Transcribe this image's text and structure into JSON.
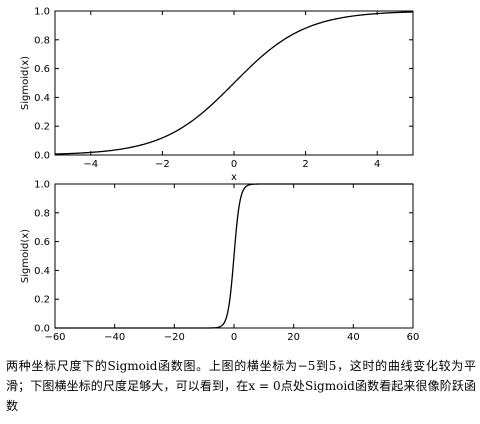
{
  "chart_data": [
    {
      "type": "line",
      "function": "sigmoid",
      "x_range": [
        -5,
        5
      ],
      "xlim": [
        -5,
        5
      ],
      "ylim": [
        0.0,
        1.0
      ],
      "xticks": [
        -4,
        -2,
        0,
        2,
        4
      ],
      "xtick_labels": [
        "−4",
        "−2",
        "0",
        "2",
        "4"
      ],
      "yticks": [
        0.0,
        0.2,
        0.4,
        0.6,
        0.8,
        1.0
      ],
      "ytick_labels": [
        "0.0",
        "0.2",
        "0.4",
        "0.6",
        "0.8",
        "1.0"
      ],
      "xlabel": "x",
      "ylabel": "Sigmoid(x)",
      "grid": false,
      "series": [
        {
          "x": [
            -5,
            -4,
            -3,
            -2,
            -1,
            0,
            1,
            2,
            3,
            4,
            5
          ],
          "y": [
            0.007,
            0.018,
            0.047,
            0.119,
            0.269,
            0.5,
            0.731,
            0.881,
            0.953,
            0.982,
            0.993
          ]
        }
      ]
    },
    {
      "type": "line",
      "function": "sigmoid",
      "x_range": [
        -60,
        60
      ],
      "xlim": [
        -60,
        60
      ],
      "ylim": [
        0.0,
        1.0
      ],
      "xticks": [
        -60,
        -40,
        -20,
        0,
        20,
        40,
        60
      ],
      "xtick_labels": [
        "−60",
        "−40",
        "−20",
        "0",
        "20",
        "40",
        "60"
      ],
      "yticks": [
        0.0,
        0.2,
        0.4,
        0.6,
        0.8,
        1.0
      ],
      "ytick_labels": [
        "0.0",
        "0.2",
        "0.4",
        "0.6",
        "0.8",
        "1.0"
      ],
      "xlabel": "",
      "ylabel": "Sigmoid(x)",
      "grid": false,
      "series": [
        {
          "x": [
            -60,
            -10,
            -5,
            -3,
            -2,
            -1,
            0,
            1,
            2,
            3,
            5,
            10,
            60
          ],
          "y": [
            0.0,
            0.0,
            0.007,
            0.047,
            0.119,
            0.269,
            0.5,
            0.731,
            0.881,
            0.953,
            0.993,
            1.0,
            1.0
          ]
        }
      ]
    }
  ],
  "caption": "两种坐标尺度下的Sigmoid函数图。上图的横坐标为−5到5，这时的曲线变化较为平滑；下图横坐标的尺度足够大，可以看到，在x = 0点处Sigmoid函数看起来很像阶跃函数"
}
